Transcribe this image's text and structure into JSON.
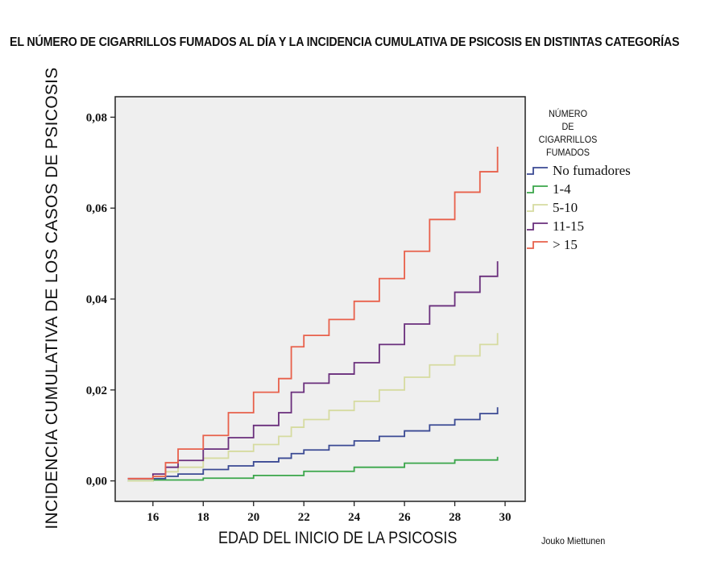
{
  "title": "EL NÚMERO DE CIGARRILLOS FUMADOS AL DÍA Y LA INCIDENCIA CUMULATIVA DE PSICOSIS EN DISTINTAS CATEGORÍAS",
  "credit": "Jouko Miettunen",
  "legend": {
    "title_lines": [
      "NÚMERO",
      "DE CIGARRILLOS",
      "FUMADOS"
    ]
  },
  "colors": {
    "plot_bg": "#efefef",
    "axis": "#222222"
  },
  "chart_data": {
    "type": "line",
    "title": "EL NÚMERO DE CIGARRILLOS FUMADOS AL DÍA Y LA INCIDENCIA CUMULATIVA DE PSICOSIS EN DISTINTAS CATEGORÍAS",
    "xlabel": "EDAD DEL INICIO DE LA PSICOSIS",
    "ylabel": "INCIDENCIA CUMULATIVA DE LOS CASOS DE PSICOSIS",
    "xlim": [
      14.5,
      30.8
    ],
    "ylim": [
      -0.0045,
      0.0845
    ],
    "x_ticks": [
      16,
      18,
      20,
      22,
      24,
      26,
      28,
      30
    ],
    "x_tick_labels": [
      "16",
      "18",
      "20",
      "22",
      "24",
      "26",
      "28",
      "30"
    ],
    "y_ticks": [
      0.0,
      0.02,
      0.04,
      0.06,
      0.08
    ],
    "y_tick_labels": [
      "0,00",
      "0,02",
      "0,04",
      "0,06",
      "0,08"
    ],
    "step": true,
    "series": [
      {
        "name": "No fumadores",
        "color": "#3b4a94",
        "x": [
          15.0,
          16.0,
          16.5,
          17.0,
          18.0,
          19.0,
          20.0,
          21.0,
          21.5,
          22.0,
          23.0,
          24.0,
          25.0,
          26.0,
          27.0,
          28.0,
          29.0,
          29.7
        ],
        "y": [
          0.0,
          0.0005,
          0.001,
          0.0015,
          0.0025,
          0.0033,
          0.0042,
          0.005,
          0.006,
          0.0068,
          0.0078,
          0.0088,
          0.0098,
          0.011,
          0.0123,
          0.0135,
          0.0148,
          0.0162
        ]
      },
      {
        "name": "1-4",
        "color": "#3aa64a",
        "x": [
          15.0,
          16.0,
          18.0,
          20.0,
          22.0,
          24.0,
          26.0,
          28.0,
          29.7
        ],
        "y": [
          0.0,
          0.0002,
          0.0006,
          0.0012,
          0.0021,
          0.003,
          0.0039,
          0.0046,
          0.0053
        ]
      },
      {
        "name": "5-10",
        "color": "#d6dba0",
        "x": [
          15.0,
          16.0,
          16.5,
          17.0,
          18.0,
          19.0,
          20.0,
          21.0,
          21.5,
          22.0,
          23.0,
          24.0,
          25.0,
          26.0,
          27.0,
          28.0,
          29.0,
          29.7
        ],
        "y": [
          0.0,
          0.001,
          0.002,
          0.003,
          0.005,
          0.0065,
          0.008,
          0.0098,
          0.0118,
          0.0135,
          0.0155,
          0.0175,
          0.02,
          0.0228,
          0.0255,
          0.0275,
          0.03,
          0.0325
        ]
      },
      {
        "name": "11-15",
        "color": "#6a2f7c",
        "x": [
          15.0,
          16.0,
          16.5,
          17.0,
          18.0,
          19.0,
          20.0,
          21.0,
          21.5,
          22.0,
          23.0,
          24.0,
          25.0,
          26.0,
          27.0,
          28.0,
          29.0,
          29.7
        ],
        "y": [
          0.0005,
          0.0015,
          0.003,
          0.0045,
          0.007,
          0.0095,
          0.0122,
          0.015,
          0.0195,
          0.0215,
          0.0235,
          0.026,
          0.03,
          0.0345,
          0.0385,
          0.0415,
          0.045,
          0.0483
        ]
      },
      {
        "name": "> 15",
        "color": "#e8604b",
        "x": [
          15.0,
          16.0,
          16.5,
          17.0,
          18.0,
          19.0,
          20.0,
          21.0,
          21.5,
          22.0,
          23.0,
          24.0,
          25.0,
          26.0,
          27.0,
          28.0,
          29.0,
          29.7
        ],
        "y": [
          0.0005,
          0.001,
          0.004,
          0.007,
          0.01,
          0.015,
          0.0195,
          0.0225,
          0.0295,
          0.032,
          0.0355,
          0.0395,
          0.0445,
          0.0505,
          0.0575,
          0.0635,
          0.068,
          0.0735
        ]
      }
    ]
  }
}
